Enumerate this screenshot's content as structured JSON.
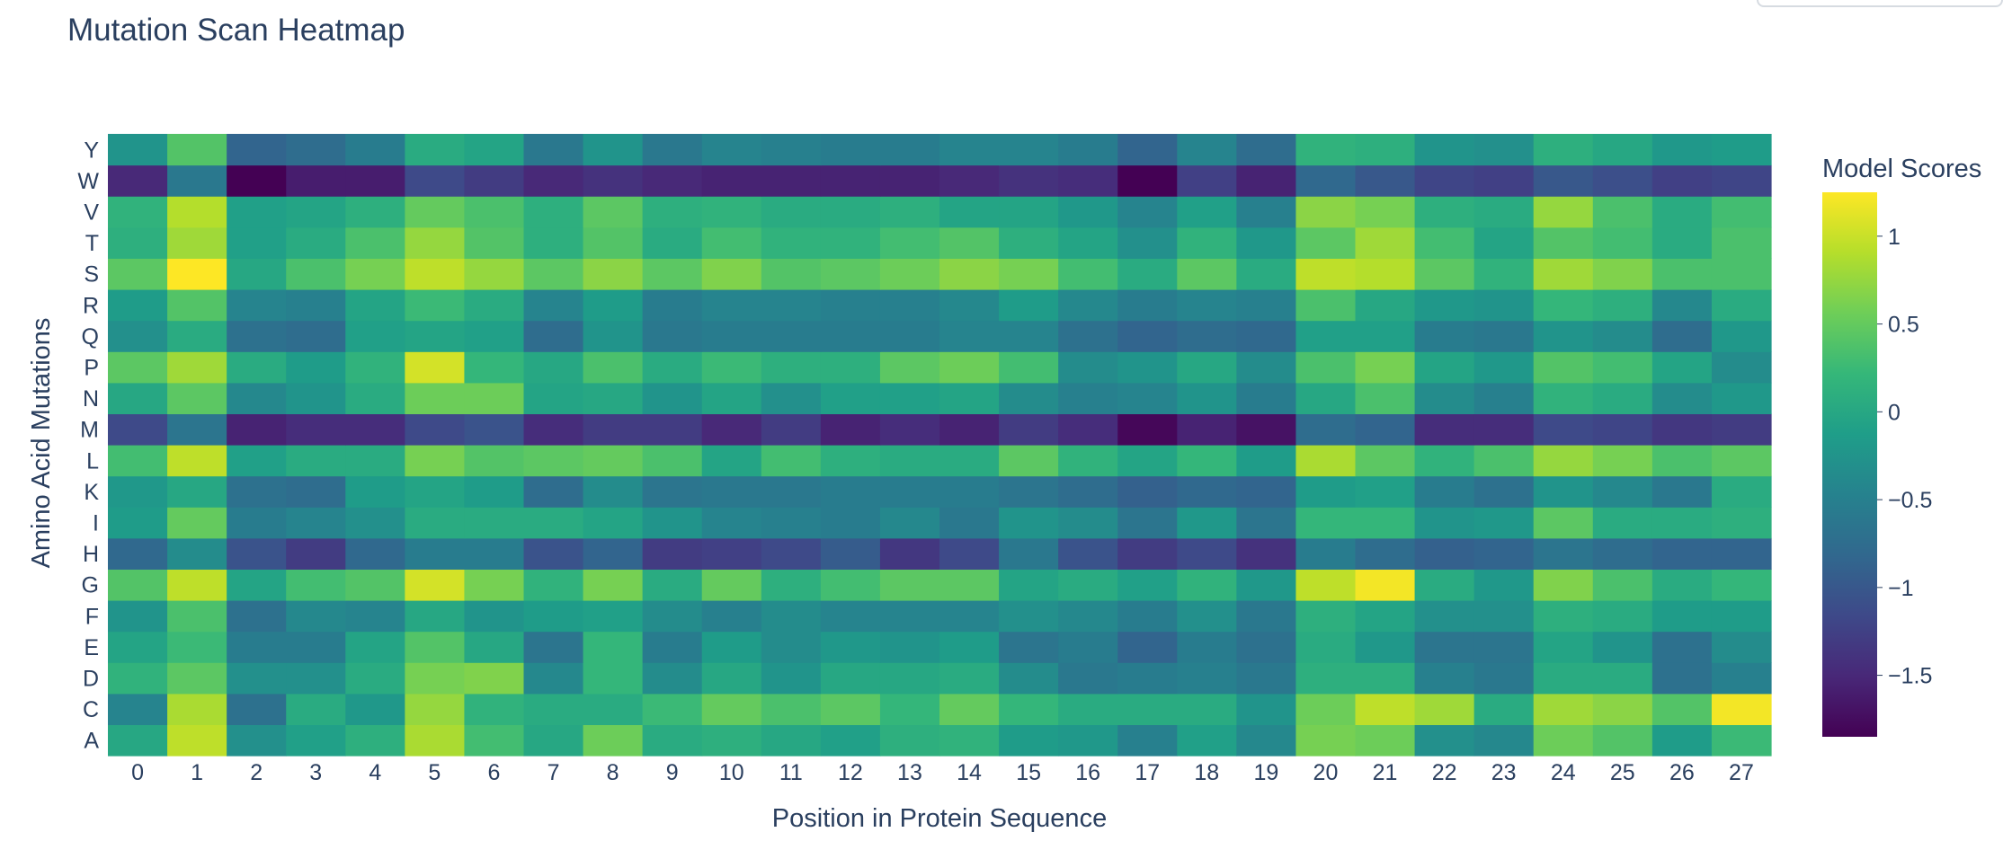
{
  "chart_data": {
    "type": "heatmap",
    "title": "Mutation Scan Heatmap",
    "xlabel": "Position in Protein Sequence",
    "ylabel": "Amino Acid Mutations",
    "x": [
      0,
      1,
      2,
      3,
      4,
      5,
      6,
      7,
      8,
      9,
      10,
      11,
      12,
      13,
      14,
      15,
      16,
      17,
      18,
      19,
      20,
      21,
      22,
      23,
      24,
      25,
      26,
      27
    ],
    "y": [
      "A",
      "C",
      "D",
      "E",
      "F",
      "G",
      "H",
      "I",
      "K",
      "L",
      "M",
      "N",
      "P",
      "Q",
      "R",
      "S",
      "T",
      "V",
      "W",
      "Y"
    ],
    "colorscale": "Viridis",
    "zlim": [
      -1.85,
      1.25
    ],
    "colorbar": {
      "title": "Model Scores",
      "ticks": [
        -1.5,
        -1,
        -0.5,
        0,
        0.5,
        1
      ],
      "tick_labels": [
        "−1.5",
        "−1",
        "−0.5",
        "0",
        "0.5",
        "1"
      ]
    },
    "z": [
      [
        0.0,
        0.95,
        -0.3,
        -0.1,
        0.1,
        0.85,
        0.3,
        0.0,
        0.55,
        0.05,
        0.1,
        0.0,
        -0.1,
        0.1,
        0.15,
        -0.15,
        -0.2,
        -0.5,
        -0.1,
        -0.4,
        0.6,
        0.55,
        -0.3,
        -0.4,
        0.55,
        0.4,
        -0.15,
        0.25
      ],
      [
        -0.45,
        0.85,
        -0.7,
        0.05,
        -0.2,
        0.75,
        0.15,
        0.05,
        0.05,
        0.25,
        0.5,
        0.35,
        0.45,
        0.2,
        0.5,
        0.2,
        0.05,
        0.05,
        0.05,
        -0.25,
        0.55,
        0.95,
        0.8,
        0.05,
        0.8,
        0.7,
        0.4,
        1.2
      ],
      [
        0.15,
        0.45,
        -0.3,
        -0.3,
        0.05,
        0.6,
        0.65,
        -0.4,
        0.2,
        -0.35,
        0.0,
        -0.25,
        0.0,
        0.0,
        0.05,
        -0.35,
        -0.6,
        -0.55,
        -0.5,
        -0.6,
        0.1,
        0.1,
        -0.5,
        -0.6,
        0.05,
        0.05,
        -0.7,
        -0.5
      ],
      [
        -0.05,
        0.25,
        -0.55,
        -0.55,
        -0.05,
        0.4,
        0.0,
        -0.65,
        0.2,
        -0.55,
        -0.15,
        -0.35,
        -0.2,
        -0.25,
        -0.15,
        -0.65,
        -0.55,
        -0.85,
        -0.55,
        -0.7,
        0.05,
        -0.2,
        -0.65,
        -0.65,
        -0.05,
        -0.25,
        -0.7,
        -0.35
      ],
      [
        -0.25,
        0.35,
        -0.7,
        -0.4,
        -0.45,
        0.0,
        -0.25,
        -0.15,
        -0.1,
        -0.35,
        -0.5,
        -0.35,
        -0.45,
        -0.45,
        -0.45,
        -0.3,
        -0.4,
        -0.55,
        -0.3,
        -0.6,
        0.1,
        -0.05,
        -0.3,
        -0.3,
        0.1,
        0.05,
        -0.15,
        -0.15
      ],
      [
        0.4,
        0.95,
        -0.05,
        0.3,
        0.4,
        1.05,
        0.6,
        0.15,
        0.6,
        0.05,
        0.5,
        0.1,
        0.3,
        0.45,
        0.45,
        -0.05,
        0.05,
        -0.1,
        0.15,
        -0.2,
        0.95,
        1.2,
        0.05,
        -0.2,
        0.65,
        0.35,
        0.05,
        0.2
      ],
      [
        -0.8,
        -0.35,
        -1.05,
        -1.3,
        -0.8,
        -0.55,
        -0.55,
        -1.05,
        -0.85,
        -1.3,
        -1.25,
        -1.15,
        -0.95,
        -1.35,
        -1.15,
        -0.6,
        -1.05,
        -1.3,
        -1.15,
        -1.4,
        -0.55,
        -0.75,
        -0.9,
        -0.85,
        -0.65,
        -0.75,
        -0.85,
        -0.85
      ],
      [
        -0.15,
        0.5,
        -0.55,
        -0.45,
        -0.3,
        0.05,
        0.05,
        0.05,
        -0.05,
        -0.25,
        -0.45,
        -0.5,
        -0.55,
        -0.4,
        -0.6,
        -0.25,
        -0.35,
        -0.65,
        -0.2,
        -0.65,
        0.2,
        0.2,
        -0.25,
        -0.2,
        0.45,
        0.05,
        0.05,
        0.1
      ],
      [
        -0.2,
        0.0,
        -0.7,
        -0.75,
        -0.15,
        -0.05,
        -0.15,
        -0.75,
        -0.35,
        -0.65,
        -0.6,
        -0.6,
        -0.55,
        -0.55,
        -0.55,
        -0.65,
        -0.75,
        -0.9,
        -0.8,
        -0.85,
        -0.15,
        -0.1,
        -0.55,
        -0.7,
        -0.25,
        -0.4,
        -0.6,
        0.05
      ],
      [
        0.3,
        0.95,
        -0.1,
        0.05,
        0.05,
        0.6,
        0.4,
        0.45,
        0.5,
        0.35,
        -0.05,
        0.3,
        0.1,
        0.05,
        0.05,
        0.45,
        0.15,
        -0.05,
        0.2,
        -0.15,
        0.85,
        0.45,
        0.15,
        0.35,
        0.75,
        0.6,
        0.35,
        0.45
      ],
      [
        -1.15,
        -0.65,
        -1.55,
        -1.45,
        -1.45,
        -1.15,
        -1.05,
        -1.45,
        -1.3,
        -1.3,
        -1.5,
        -1.3,
        -1.55,
        -1.45,
        -1.55,
        -1.3,
        -1.45,
        -1.8,
        -1.55,
        -1.7,
        -0.75,
        -0.85,
        -1.45,
        -1.45,
        -1.15,
        -1.2,
        -1.35,
        -1.3
      ],
      [
        0.0,
        0.45,
        -0.4,
        -0.25,
        0.05,
        0.55,
        0.55,
        -0.05,
        0.0,
        -0.25,
        -0.05,
        -0.3,
        -0.1,
        -0.1,
        -0.05,
        -0.35,
        -0.5,
        -0.45,
        -0.25,
        -0.55,
        0.0,
        0.35,
        -0.35,
        -0.5,
        0.15,
        0.05,
        -0.35,
        -0.2
      ],
      [
        0.45,
        0.8,
        0.05,
        -0.15,
        0.15,
        1.05,
        0.2,
        0.0,
        0.35,
        0.05,
        0.25,
        0.1,
        0.1,
        0.45,
        0.55,
        0.3,
        -0.35,
        -0.25,
        0.0,
        -0.35,
        0.35,
        0.6,
        -0.05,
        -0.2,
        0.4,
        0.3,
        -0.05,
        -0.35
      ],
      [
        -0.3,
        0.05,
        -0.7,
        -0.75,
        -0.1,
        -0.05,
        -0.1,
        -0.75,
        -0.25,
        -0.6,
        -0.55,
        -0.55,
        -0.55,
        -0.55,
        -0.45,
        -0.45,
        -0.7,
        -0.85,
        -0.75,
        -0.8,
        -0.1,
        -0.1,
        -0.55,
        -0.6,
        -0.25,
        -0.35,
        -0.75,
        -0.2
      ],
      [
        -0.15,
        0.4,
        -0.45,
        -0.5,
        -0.05,
        0.25,
        0.05,
        -0.45,
        -0.15,
        -0.55,
        -0.45,
        -0.45,
        -0.5,
        -0.5,
        -0.4,
        -0.15,
        -0.4,
        -0.55,
        -0.45,
        -0.5,
        0.35,
        0.0,
        -0.2,
        -0.25,
        0.2,
        0.1,
        -0.4,
        0.05
      ],
      [
        0.45,
        1.25,
        0.0,
        0.35,
        0.6,
        0.95,
        0.75,
        0.45,
        0.7,
        0.45,
        0.65,
        0.4,
        0.45,
        0.55,
        0.7,
        0.6,
        0.3,
        0.05,
        0.45,
        0.05,
        0.95,
        0.9,
        0.45,
        0.15,
        0.8,
        0.65,
        0.35,
        0.35
      ],
      [
        0.1,
        0.8,
        -0.1,
        0.05,
        0.35,
        0.75,
        0.4,
        0.1,
        0.4,
        0.05,
        0.3,
        0.15,
        0.15,
        0.3,
        0.4,
        0.1,
        -0.05,
        -0.3,
        0.15,
        -0.2,
        0.45,
        0.8,
        0.3,
        -0.05,
        0.4,
        0.3,
        0.05,
        0.35
      ],
      [
        0.15,
        0.9,
        -0.1,
        -0.05,
        0.1,
        0.5,
        0.35,
        0.1,
        0.45,
        0.1,
        0.15,
        0.05,
        0.05,
        0.1,
        -0.05,
        -0.05,
        -0.2,
        -0.45,
        -0.1,
        -0.5,
        0.7,
        0.6,
        0.1,
        0.05,
        0.75,
        0.35,
        0.05,
        0.3
      ],
      [
        -1.5,
        -0.6,
        -1.85,
        -1.6,
        -1.6,
        -1.15,
        -1.3,
        -1.5,
        -1.4,
        -1.5,
        -1.55,
        -1.55,
        -1.55,
        -1.55,
        -1.5,
        -1.4,
        -1.45,
        -1.85,
        -1.25,
        -1.55,
        -0.8,
        -1.0,
        -1.2,
        -1.25,
        -1.0,
        -1.1,
        -1.25,
        -1.2
      ],
      [
        -0.25,
        0.4,
        -0.85,
        -0.75,
        -0.55,
        0.05,
        -0.05,
        -0.6,
        -0.25,
        -0.6,
        -0.45,
        -0.5,
        -0.55,
        -0.55,
        -0.45,
        -0.45,
        -0.55,
        -0.85,
        -0.45,
        -0.75,
        0.15,
        0.1,
        -0.25,
        -0.3,
        0.1,
        0.0,
        -0.2,
        -0.15
      ]
    ]
  }
}
